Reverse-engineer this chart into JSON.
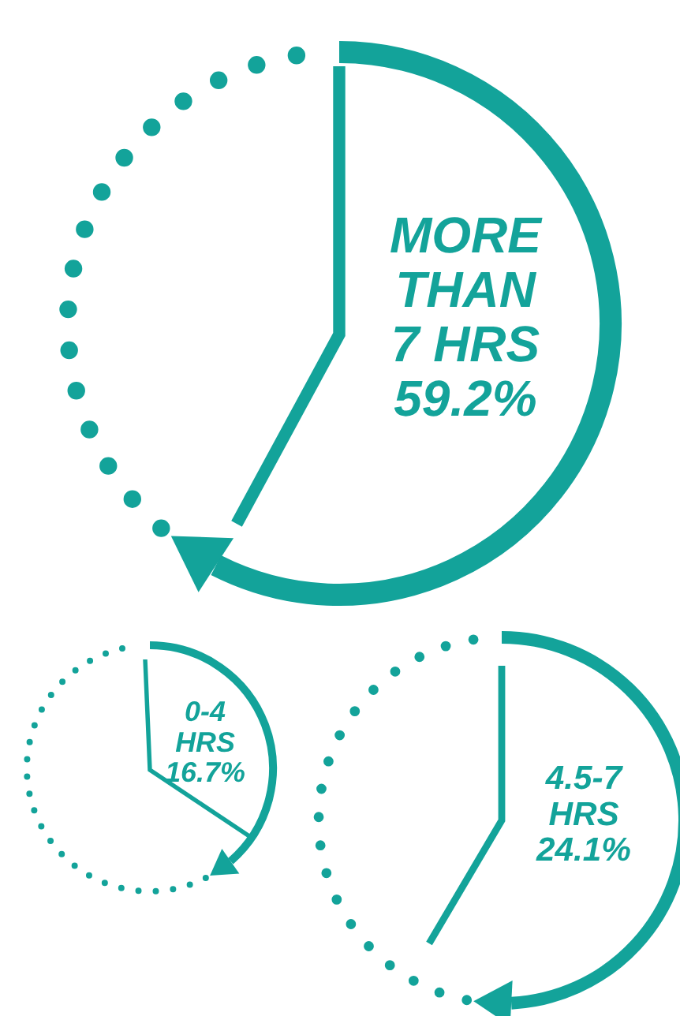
{
  "chart_data": {
    "type": "other",
    "categories": [
      "MORE\nTHAN\n7 HRS",
      "0-4\nHRS",
      "4.5-7\nHRS"
    ],
    "values": [
      59.2,
      16.7,
      24.1
    ],
    "value_labels": [
      "59.2%",
      "16.7%",
      "24.1%"
    ],
    "color": "#13a39a"
  }
}
